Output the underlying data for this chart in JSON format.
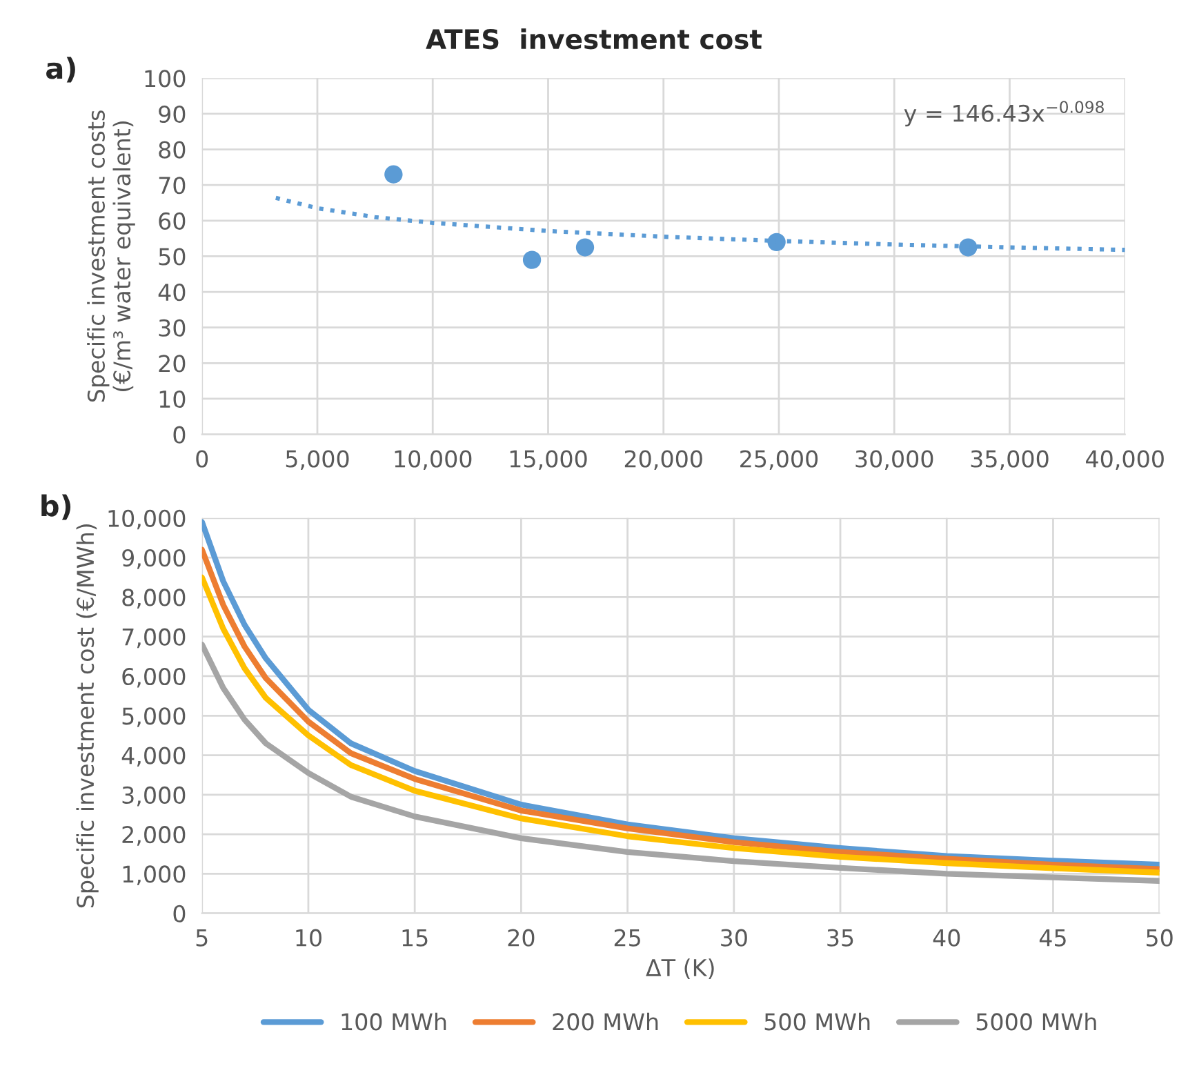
{
  "chart_data": [
    {
      "type": "scatter",
      "title": "ATES  investment cost",
      "ylabel": "Specific investment costs\n(€/m³ water equivalent)",
      "annotations": [
        "a)",
        "y = 146.43x$^{−0.098}$"
      ],
      "series": [
        {
          "type": "scatter",
          "color": "#5b9bd5",
          "marker": "circle",
          "x": [
            8300,
            14300,
            16600,
            24900,
            33200
          ],
          "values": [
            73,
            49,
            52.5,
            54,
            52.5
          ]
        },
        {
          "type": "line",
          "color": "#5b9bd5",
          "line_style": "dotted",
          "marker": "none",
          "x": [
            3200,
            5000,
            7500,
            10000,
            15000,
            20000,
            25000,
            30000,
            35000,
            40000
          ],
          "values": [
            66.4,
            63.5,
            61.0,
            59.4,
            57.1,
            55.5,
            54.3,
            53.3,
            52.5,
            51.8
          ]
        }
      ],
      "xlim": [
        0,
        40000
      ],
      "xticks": [
        0,
        {
          "value": 5000,
          "label": "5,000"
        },
        {
          "value": 10000,
          "label": "10,000"
        },
        {
          "value": 15000,
          "label": "15,000"
        },
        {
          "value": 20000,
          "label": "20,000"
        },
        {
          "value": 25000,
          "label": "25,000"
        },
        {
          "value": 30000,
          "label": "30,000"
        },
        {
          "value": 35000,
          "label": "35,000"
        },
        {
          "value": 40000,
          "label": "40,000"
        }
      ],
      "ylim": [
        0,
        100
      ],
      "yticks": [
        0,
        10,
        20,
        30,
        40,
        50,
        60,
        70,
        80,
        90,
        100
      ],
      "grid": true,
      "legend": false
    },
    {
      "type": "line",
      "xlabel": "ΔT (K)",
      "ylabel": "Specific investment cost (€/MWh)",
      "annotations": [
        "b)"
      ],
      "x": [
        5,
        6,
        7,
        8,
        10,
        12,
        15,
        20,
        25,
        30,
        35,
        40,
        45,
        50
      ],
      "series": [
        {
          "name": "100 MWh",
          "color": "#5b9bd5",
          "values": [
            9900,
            8400,
            7300,
            6450,
            5150,
            4300,
            3600,
            2750,
            2250,
            1900,
            1650,
            1450,
            1330,
            1230
          ]
        },
        {
          "name": "200 MWh",
          "color": "#ed7d31",
          "values": [
            9200,
            7800,
            6750,
            5950,
            4850,
            4050,
            3400,
            2600,
            2150,
            1800,
            1550,
            1380,
            1230,
            1120
          ]
        },
        {
          "name": "500 MWh",
          "color": "#ffc000",
          "values": [
            8500,
            7200,
            6200,
            5450,
            4500,
            3750,
            3100,
            2400,
            1950,
            1650,
            1430,
            1270,
            1140,
            1030
          ]
        },
        {
          "name": "5000 MWh",
          "color": "#a5a5a5",
          "values": [
            6800,
            5700,
            4900,
            4300,
            3550,
            2950,
            2450,
            1900,
            1550,
            1320,
            1150,
            1000,
            910,
            820
          ]
        }
      ],
      "xlim": [
        5,
        50
      ],
      "xticks": [
        5,
        10,
        15,
        20,
        25,
        30,
        35,
        40,
        45,
        50
      ],
      "ylim": [
        0,
        10000
      ],
      "yticks": [
        0,
        {
          "value": 1000,
          "label": "1,000"
        },
        {
          "value": 2000,
          "label": "2,000"
        },
        {
          "value": 3000,
          "label": "3,000"
        },
        {
          "value": 4000,
          "label": "4,000"
        },
        {
          "value": 5000,
          "label": "5,000"
        },
        {
          "value": 6000,
          "label": "6,000"
        },
        {
          "value": 7000,
          "label": "7,000"
        },
        {
          "value": 8000,
          "label": "8,000"
        },
        {
          "value": 9000,
          "label": "9,000"
        },
        {
          "value": 10000,
          "label": "10,000"
        }
      ],
      "grid": true,
      "legend": "bottom",
      "line_style": "solid",
      "marker": "none"
    }
  ]
}
